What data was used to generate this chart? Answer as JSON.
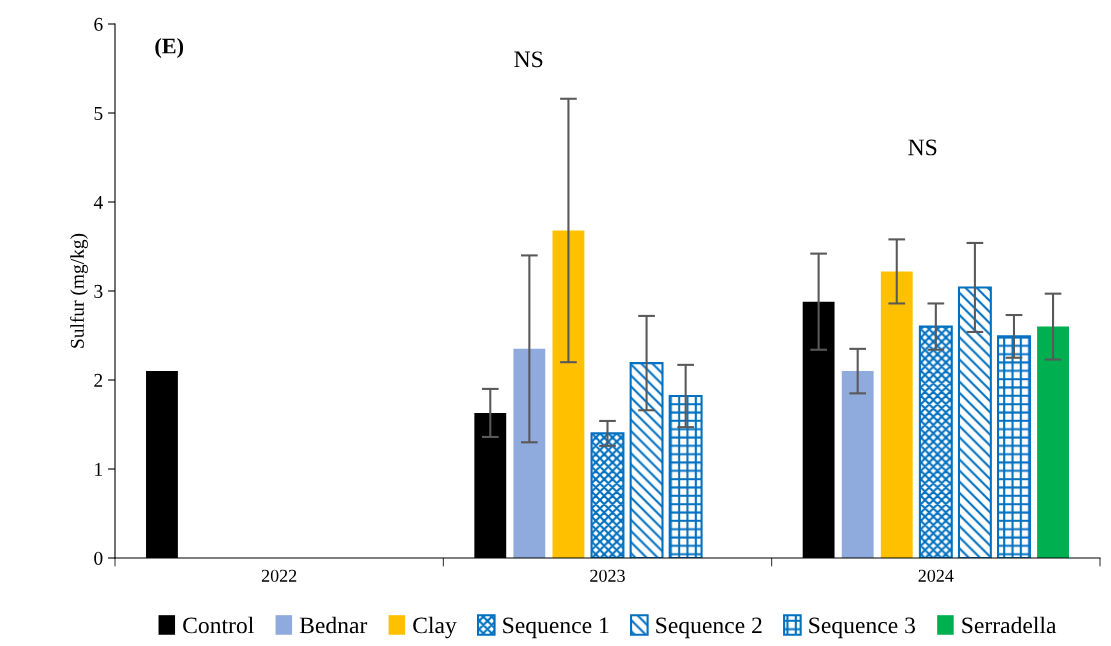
{
  "chart_data": {
    "type": "bar",
    "ylabel": "Sulfur (mg/kg)",
    "categories": [
      "2022",
      "2023",
      "2024"
    ],
    "series": [
      {
        "name": "Control",
        "color": "#000000",
        "values": [
          2.1,
          1.63,
          2.88
        ],
        "errors": [
          null,
          0.27,
          0.54
        ]
      },
      {
        "name": "Bednar",
        "color": "#8faadc",
        "values": [
          null,
          2.35,
          2.1
        ],
        "errors": [
          null,
          1.05,
          0.25
        ]
      },
      {
        "name": "Clay",
        "color": "#ffc000",
        "values": [
          null,
          3.68,
          3.22
        ],
        "errors": [
          null,
          1.48,
          0.36
        ]
      },
      {
        "name": "Sequence 1",
        "color": "#0070c0",
        "values": [
          null,
          1.4,
          2.6
        ],
        "errors": [
          null,
          0.14,
          0.26
        ]
      },
      {
        "name": "Sequence 2",
        "color": "#0070c0",
        "values": [
          null,
          2.19,
          3.04
        ],
        "errors": [
          null,
          0.53,
          0.5
        ]
      },
      {
        "name": "Sequence 3",
        "color": "#0070c0",
        "values": [
          null,
          1.82,
          2.49
        ],
        "errors": [
          null,
          0.35,
          0.24
        ]
      },
      {
        "name": "Serradella",
        "color": "#00b050",
        "values": [
          null,
          null,
          2.6
        ],
        "errors": [
          null,
          null,
          0.37
        ]
      }
    ],
    "ylim": [
      0,
      6
    ],
    "yticks": [
      0,
      1,
      2,
      3,
      4,
      5,
      6
    ],
    "grid": false,
    "legend": "bottom",
    "annotations": [
      "(E)",
      "NS",
      "NS"
    ]
  }
}
